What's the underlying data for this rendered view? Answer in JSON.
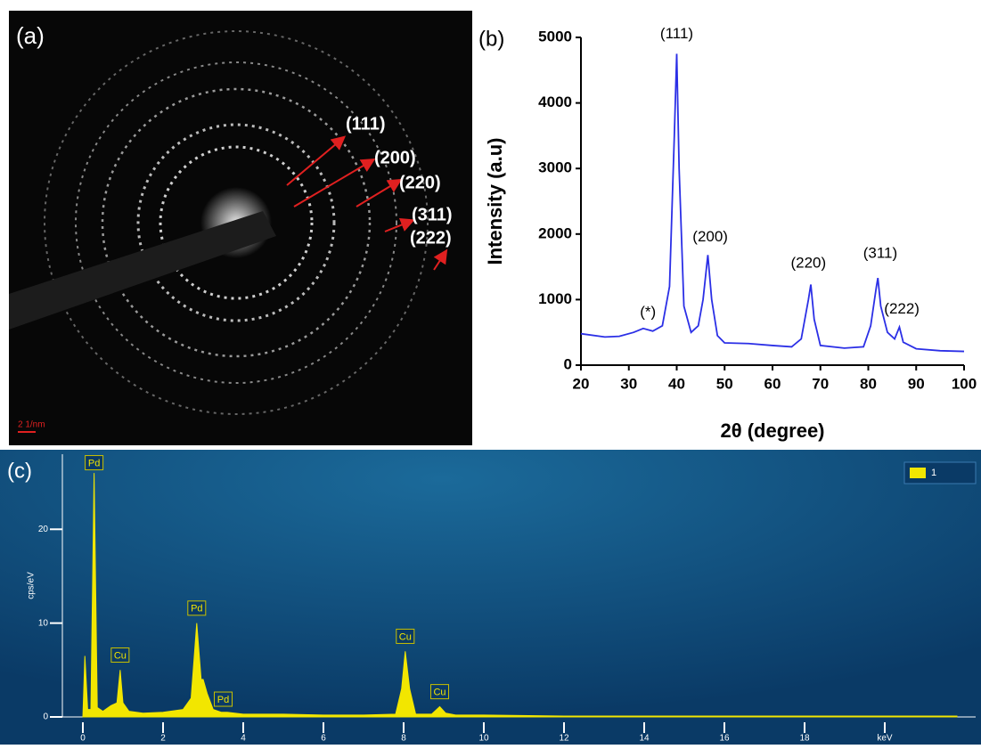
{
  "saed": {
    "panel_label": "(a)",
    "scale_bar": "2 1/nm",
    "rings": [
      "(111)",
      "(200)",
      "(220)",
      "(311)",
      "(222)"
    ]
  },
  "chart_data": [
    {
      "type": "line",
      "panel_label": "(b)",
      "xlabel": "2θ (degree)",
      "ylabel": "Intensity (a.u)",
      "color": "#2b2fe6",
      "x": [
        20,
        25,
        28,
        31,
        33,
        35,
        37,
        38.5,
        39.5,
        40,
        40.5,
        41.5,
        43,
        44.5,
        45.5,
        46.5,
        47.3,
        48.5,
        50,
        55,
        60,
        64,
        66,
        67.5,
        68,
        68.7,
        70,
        75,
        79,
        80.5,
        81.7,
        82,
        82.6,
        84,
        85.5,
        86.5,
        87.3,
        90,
        95,
        100
      ],
      "values": [
        480,
        430,
        440,
        500,
        560,
        520,
        600,
        1200,
        3500,
        4750,
        3000,
        900,
        500,
        600,
        1000,
        1680,
        1000,
        450,
        340,
        330,
        300,
        280,
        400,
        1000,
        1230,
        700,
        300,
        260,
        280,
        600,
        1200,
        1330,
        900,
        500,
        400,
        580,
        350,
        250,
        220,
        210
      ],
      "xlim": [
        20,
        100
      ],
      "ylim": [
        0,
        5000
      ],
      "xticks": [
        20,
        30,
        40,
        50,
        60,
        70,
        80,
        90,
        100
      ],
      "yticks": [
        0,
        1000,
        2000,
        3000,
        4000,
        5000
      ],
      "annotations": [
        {
          "text": "(111)",
          "x": 40,
          "y": 5050
        },
        {
          "text": "(200)",
          "x": 47,
          "y": 1950
        },
        {
          "text": "(220)",
          "x": 67.5,
          "y": 1550
        },
        {
          "text": "(311)",
          "x": 82.5,
          "y": 1700
        },
        {
          "text": "(222)",
          "x": 87,
          "y": 850
        },
        {
          "text": "(*)",
          "x": 34,
          "y": 800
        }
      ]
    },
    {
      "type": "area",
      "panel_label": "(c)",
      "ylabel": "cps/eV",
      "x": [
        0,
        0.05,
        0.12,
        0.2,
        0.28,
        0.36,
        0.5,
        0.7,
        0.85,
        0.93,
        1.0,
        1.15,
        1.5,
        2.0,
        2.5,
        2.7,
        2.84,
        2.95,
        3.0,
        3.1,
        3.25,
        3.45,
        3.6,
        4,
        5,
        6,
        7,
        7.8,
        7.95,
        8.04,
        8.15,
        8.3,
        8.7,
        8.9,
        9.05,
        9.3,
        10,
        12,
        14,
        16,
        18,
        20,
        21.8
      ],
      "series": [
        {
          "name": "1",
          "color": "#f2e600",
          "values": [
            0,
            6.5,
            0.8,
            0.8,
            26,
            1,
            0.6,
            1.2,
            1.5,
            5,
            1.5,
            0.6,
            0.4,
            0.5,
            0.8,
            2,
            10,
            4,
            4,
            2.5,
            0.8,
            0.5,
            0.5,
            0.3,
            0.3,
            0.2,
            0.2,
            0.3,
            3,
            7,
            3,
            0.3,
            0.3,
            1.1,
            0.4,
            0.2,
            0.2,
            0.1,
            0.1,
            0.1,
            0.1,
            0.1,
            0.1
          ]
        }
      ],
      "xlim": [
        0,
        22
      ],
      "ylim": [
        0,
        28
      ],
      "xticks": [
        0,
        2,
        4,
        6,
        8,
        10,
        12,
        14,
        16,
        18,
        {
          "value": 20,
          "label": "keV"
        }
      ],
      "yticks": [
        0,
        10,
        20
      ],
      "annotations": [
        {
          "text": "Pd",
          "x": 0.28,
          "y": 27
        },
        {
          "text": "Cu",
          "x": 0.93,
          "y": 6.5
        },
        {
          "text": "Pd",
          "x": 2.84,
          "y": 11.5
        },
        {
          "text": "Pd",
          "x": 3.5,
          "y": 1.8
        },
        {
          "text": "Cu",
          "x": 8.04,
          "y": 8.5
        },
        {
          "text": "Cu",
          "x": 8.9,
          "y": 2.6
        }
      ]
    }
  ]
}
